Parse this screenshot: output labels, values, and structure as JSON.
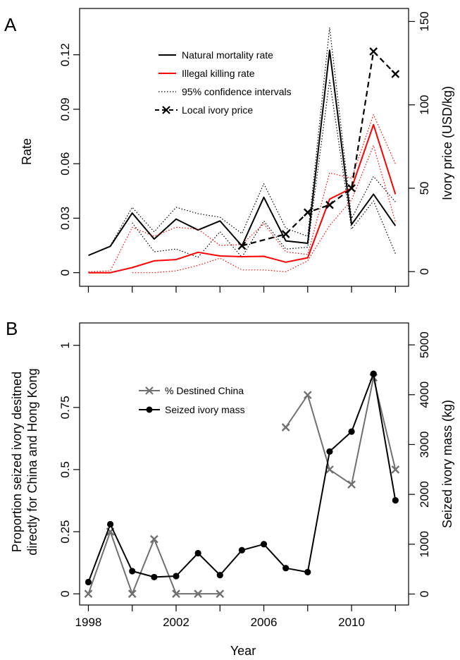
{
  "chart_data": [
    {
      "panel": "A",
      "type": "line",
      "xlabel": "",
      "ylabel": "Rate",
      "y2label": "Ivory price (USD/kg)",
      "xlim": [
        1997.6,
        2012.6
      ],
      "ylim": [
        -0.0075,
        0.1455
      ],
      "y2lim": [
        -8.8,
        157.8
      ],
      "x_ticks": [
        1998,
        2000,
        2002,
        2004,
        2006,
        2008,
        2010,
        2012
      ],
      "y_ticks": [
        0,
        0.03,
        0.06,
        0.09,
        0.12
      ],
      "y_tick_labels": [
        "0",
        "0.03",
        "0.06",
        "0.09",
        "0.12"
      ],
      "y2_ticks": [
        0,
        50,
        100,
        150
      ],
      "y2_tick_labels": [
        "0",
        "50",
        "100",
        "150"
      ],
      "legend": [
        "Natural mortality rate",
        "Illegal killing rate",
        "95% confidence intervals",
        "Local ivory price"
      ],
      "legend_position": "top-center",
      "series": [
        {
          "name": "Natural mortality rate",
          "axis": "left",
          "style": "solid",
          "color": "#000000",
          "x": [
            1998,
            1999,
            2000,
            2001,
            2002,
            2003,
            2004,
            2005,
            2006,
            2007,
            2008,
            2009,
            2010,
            2011,
            2012
          ],
          "y": [
            0.0095,
            0.0145,
            0.0328,
            0.0185,
            0.0295,
            0.0235,
            0.0285,
            0.0148,
            0.0415,
            0.0175,
            0.0162,
            0.1225,
            0.0265,
            0.0432,
            0.0258
          ]
        },
        {
          "name": "Natural mortality CI upper",
          "axis": "left",
          "style": "dotted",
          "color": "#000000",
          "x": [
            1999,
            2000,
            2001,
            2002,
            2003,
            2004,
            2005,
            2006,
            2007,
            2008,
            2009,
            2010,
            2011,
            2012
          ],
          "y": [
            0.0148,
            0.036,
            0.0225,
            0.036,
            0.0325,
            0.0305,
            0.0215,
            0.049,
            0.0245,
            0.02,
            0.135,
            0.0298,
            0.053,
            0.039
          ]
        },
        {
          "name": "Natural mortality CI lower",
          "axis": "left",
          "style": "dotted",
          "color": "#000000",
          "x": [
            2000,
            2001,
            2002,
            2003,
            2004,
            2005,
            2006,
            2007,
            2008,
            2009,
            2010,
            2011,
            2012
          ],
          "y": [
            0.0275,
            0.0115,
            0.013,
            0.0085,
            0.0225,
            0.0085,
            0.0285,
            0.013,
            0.014,
            0.106,
            0.024,
            0.0395,
            0.0105
          ]
        },
        {
          "name": "Illegal killing rate",
          "axis": "left",
          "style": "solid",
          "color": "#ff0000",
          "x": [
            1998,
            1999,
            2000,
            2001,
            2002,
            2003,
            2004,
            2005,
            2006,
            2007,
            2008,
            2009,
            2010,
            2011,
            2012
          ],
          "y": [
            0,
            0,
            0.0028,
            0.0065,
            0.0072,
            0.0112,
            0.0092,
            0.0088,
            0.009,
            0.0058,
            0.0082,
            0.0405,
            0.0465,
            0.0815,
            0.0432
          ]
        },
        {
          "name": "Illegal killing CI upper",
          "axis": "left",
          "style": "dotted",
          "color": "#ff0000",
          "x": [
            1998,
            1999,
            2000,
            2001,
            2002,
            2003,
            2004,
            2005,
            2006,
            2007,
            2008,
            2009,
            2010,
            2011,
            2012
          ],
          "y": [
            0.0005,
            0.001,
            0.025,
            0.02,
            0.025,
            0.024,
            0.015,
            0.0155,
            0.027,
            0.0115,
            0.01,
            0.055,
            0.052,
            0.087,
            0.06
          ]
        },
        {
          "name": "Illegal killing CI lower",
          "axis": "left",
          "style": "dotted",
          "color": "#ff0000",
          "x": [
            2000,
            2001,
            2002,
            2003,
            2004,
            2005,
            2006,
            2007,
            2008,
            2009,
            2010,
            2011,
            2012
          ],
          "y": [
            0,
            0,
            0.001,
            0.004,
            0.008,
            0.0015,
            0.0015,
            0.0005,
            0.0065,
            0.026,
            0.04,
            0.07,
            0.028
          ]
        },
        {
          "name": "Local ivory price",
          "axis": "right",
          "style": "dashed-x",
          "color": "#000000",
          "x": [
            2005,
            2007,
            2008,
            2009,
            2010,
            2011,
            2012
          ],
          "y": [
            15.5,
            22.5,
            35.5,
            40.0,
            50.0,
            132.0,
            118.5
          ]
        }
      ]
    },
    {
      "panel": "B",
      "type": "line",
      "xlabel": "Year",
      "ylabel": "Proportion seized ivory desitned directly for China and Hong Kong",
      "ylabel_lines": [
        "Proportion seized ivory desitned",
        "directly for China and Hong Kong"
      ],
      "y2label": "Seized ivory mass (kg)",
      "xlim": [
        1997.6,
        2012.6
      ],
      "ylim": [
        -0.045,
        1.09
      ],
      "y2lim": [
        -220,
        5440
      ],
      "x_ticks": [
        1998,
        2000,
        2002,
        2004,
        2006,
        2008,
        2010,
        2012
      ],
      "x_tick_labels": [
        "1998",
        "",
        "2002",
        "",
        "2006",
        "",
        "2010",
        ""
      ],
      "y_ticks": [
        0,
        0.25,
        0.5,
        0.75,
        1
      ],
      "y_tick_labels": [
        "0",
        "0.25",
        "0.5",
        "0.75",
        "1"
      ],
      "y2_ticks": [
        0,
        1000,
        2000,
        3000,
        4000,
        5000
      ],
      "y2_tick_labels": [
        "0",
        "1000",
        "2000",
        "3000",
        "4000",
        "5000"
      ],
      "legend": [
        "% Destined China",
        "Seized ivory mass"
      ],
      "legend_position": "center-left",
      "series": [
        {
          "name": "% Destined China",
          "axis": "left",
          "style": "x",
          "color": "#707070",
          "segments": [
            {
              "x": [
                1998,
                1999,
                2000,
                2001,
                2002,
                2003,
                2004
              ],
              "y": [
                0,
                0.25,
                0,
                0.22,
                0,
                0,
                0
              ]
            },
            {
              "x": [
                2007,
                2008,
                2009,
                2010,
                2011,
                2012
              ],
              "y": [
                0.67,
                0.8,
                0.5,
                0.44,
                0.87,
                0.5
              ]
            }
          ]
        },
        {
          "name": "Seized ivory mass",
          "axis": "right",
          "style": "dot",
          "color": "#000000",
          "x": [
            1998,
            1999,
            2000,
            2001,
            2002,
            2003,
            2004,
            2005,
            2006,
            2007,
            2008,
            2009,
            2010,
            2011,
            2012
          ],
          "y": [
            240,
            1400,
            460,
            340,
            360,
            820,
            380,
            880,
            1000,
            520,
            440,
            2860,
            3260,
            4420,
            1880
          ]
        }
      ]
    }
  ]
}
